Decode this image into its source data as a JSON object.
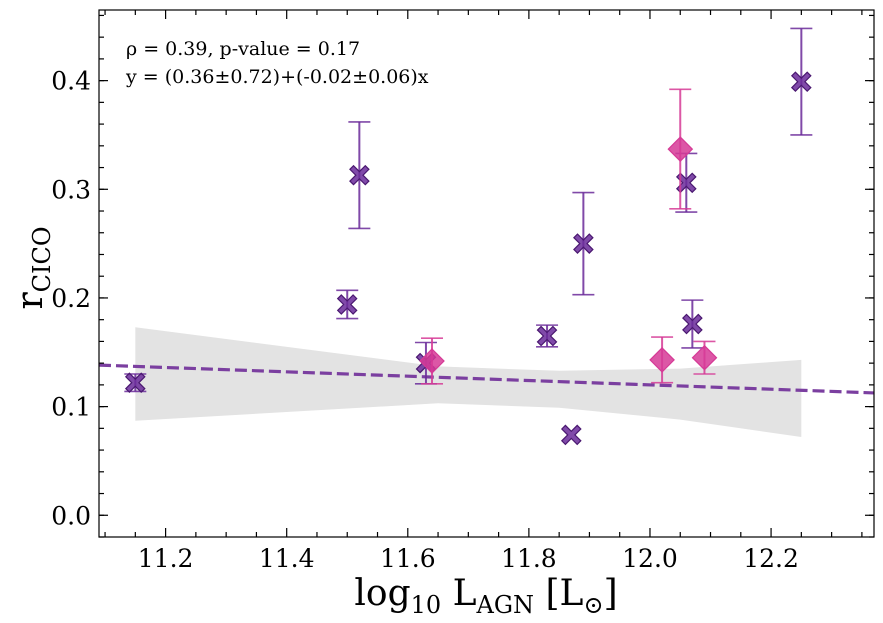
{
  "chart_data": {
    "type": "scatter",
    "xlabel": {
      "base": "log",
      "base_sub": "10",
      "mid": " L",
      "mid_sub": "AGN",
      "tail": " [L",
      "tail_sub": "⊙",
      "close": "]"
    },
    "ylabel": {
      "base": "r",
      "sub": "CICO"
    },
    "xlim": [
      11.09,
      12.37
    ],
    "ylim": [
      -0.02,
      0.465
    ],
    "x_ticks": [
      11.2,
      11.4,
      11.6,
      11.8,
      12.0,
      12.2
    ],
    "x_tick_labels": [
      "11.2",
      "11.4",
      "11.6",
      "11.8",
      "12.0",
      "12.2"
    ],
    "y_ticks": [
      0.0,
      0.1,
      0.2,
      0.3,
      0.4
    ],
    "y_tick_labels": [
      "0.0",
      "0.1",
      "0.2",
      "0.3",
      "0.4"
    ],
    "annotations": [
      "ρ = 0.39, p-value = 0.17",
      "y = (0.36±0.72)+(-0.02±0.06)x"
    ],
    "fit": {
      "intercept": 0.36,
      "slope": -0.02,
      "x_range": [
        11.09,
        12.37
      ]
    },
    "fit_band": {
      "x": [
        11.15,
        11.65,
        11.85,
        12.05,
        12.25
      ],
      "lower": [
        0.087,
        0.103,
        0.099,
        0.088,
        0.072
      ],
      "upper": [
        0.173,
        0.137,
        0.133,
        0.135,
        0.143
      ]
    },
    "series": [
      {
        "name": "cross",
        "marker": "X",
        "color": "#6a2a9a",
        "points": [
          {
            "x": 11.15,
            "y": 0.122,
            "err": 0.008
          },
          {
            "x": 11.5,
            "y": 0.194,
            "err": 0.013
          },
          {
            "x": 11.52,
            "y": 0.313,
            "err": 0.049
          },
          {
            "x": 11.63,
            "y": 0.14,
            "err": 0.019
          },
          {
            "x": 11.83,
            "y": 0.165,
            "err": 0.01
          },
          {
            "x": 11.87,
            "y": 0.074,
            "err": 0.0
          },
          {
            "x": 11.89,
            "y": 0.25,
            "err": 0.047
          },
          {
            "x": 12.06,
            "y": 0.306,
            "err": 0.027
          },
          {
            "x": 12.07,
            "y": 0.176,
            "err": 0.022
          },
          {
            "x": 12.25,
            "y": 0.399,
            "err": 0.049
          }
        ]
      },
      {
        "name": "diamond",
        "marker": "D",
        "color": "#d63a96",
        "points": [
          {
            "x": 11.64,
            "y": 0.142,
            "err": 0.021
          },
          {
            "x": 12.02,
            "y": 0.143,
            "err": 0.021
          },
          {
            "x": 12.05,
            "y": 0.337,
            "err": 0.055
          },
          {
            "x": 12.09,
            "y": 0.145,
            "err": 0.015
          }
        ]
      }
    ]
  }
}
